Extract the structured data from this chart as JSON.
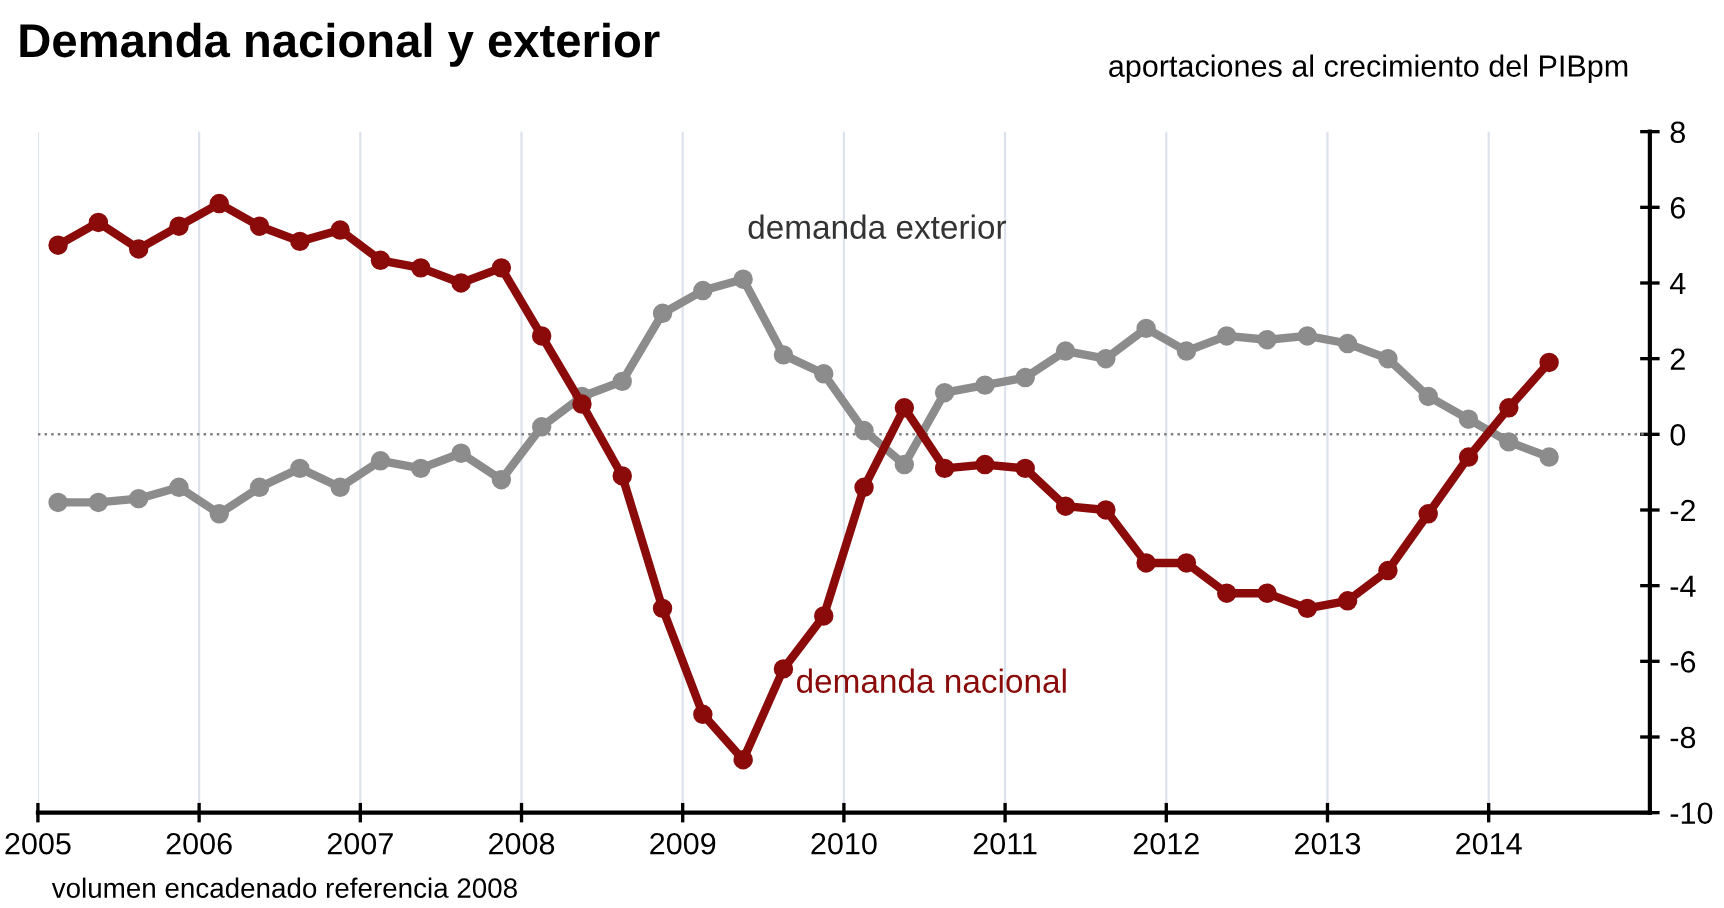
{
  "chart_data": {
    "type": "line",
    "title": "Demanda nacional y exterior",
    "subtitle": "aportaciones al crecimiento del PIBpm",
    "annotations": [
      "volumen encadenado referencia 2008"
    ],
    "x": [
      2005.125,
      2005.375,
      2005.625,
      2005.875,
      2006.125,
      2006.375,
      2006.625,
      2006.875,
      2007.125,
      2007.375,
      2007.625,
      2007.875,
      2008.125,
      2008.375,
      2008.625,
      2008.875,
      2009.125,
      2009.375,
      2009.625,
      2009.875,
      2010.125,
      2010.375,
      2010.625,
      2010.875,
      2011.125,
      2011.375,
      2011.625,
      2011.875,
      2012.125,
      2012.375,
      2012.625,
      2012.875,
      2013.125,
      2013.375,
      2013.625,
      2013.875,
      2014.125,
      2014.375
    ],
    "series": [
      {
        "name": "demanda nacional",
        "color": "#8b0a0a",
        "values": [
          5.0,
          5.6,
          4.9,
          5.5,
          6.1,
          5.5,
          5.1,
          5.4,
          4.6,
          4.4,
          4.0,
          4.4,
          2.6,
          0.8,
          -1.1,
          -4.6,
          -7.4,
          -8.6,
          -6.2,
          -4.8,
          -1.4,
          0.7,
          -0.9,
          -0.8,
          -0.9,
          -1.9,
          -2.0,
          -3.4,
          -3.4,
          -4.2,
          -4.2,
          -4.6,
          -4.4,
          -3.6,
          -2.1,
          -0.6,
          0.7,
          1.9
        ]
      },
      {
        "name": "demanda exterior",
        "color": "#8c8c8c",
        "values": [
          -1.8,
          -1.8,
          -1.7,
          -1.4,
          -2.1,
          -1.4,
          -0.9,
          -1.4,
          -0.7,
          -0.9,
          -0.5,
          -1.2,
          0.2,
          1.0,
          1.4,
          3.2,
          3.8,
          4.1,
          2.1,
          1.6,
          0.1,
          -0.8,
          1.1,
          1.3,
          1.5,
          2.2,
          2.0,
          2.8,
          2.2,
          2.6,
          2.5,
          2.6,
          2.4,
          2.0,
          1.0,
          0.4,
          -0.2,
          -0.6
        ]
      }
    ],
    "xlim": [
      2005,
      2015
    ],
    "xticks": [
      2005,
      2006,
      2007,
      2008,
      2009,
      2010,
      2011,
      2012,
      2013,
      2014
    ],
    "ylim": [
      -10,
      8
    ],
    "yticks": [
      -10,
      -8,
      -6,
      -4,
      -2,
      0,
      2,
      4,
      6,
      8
    ],
    "ref_lines": [
      {
        "axis": "y",
        "value": 0,
        "color": "#808080",
        "line_style": "dotted"
      }
    ],
    "grid": "x",
    "legend": false,
    "marker": "circle",
    "line_style": "solid"
  }
}
